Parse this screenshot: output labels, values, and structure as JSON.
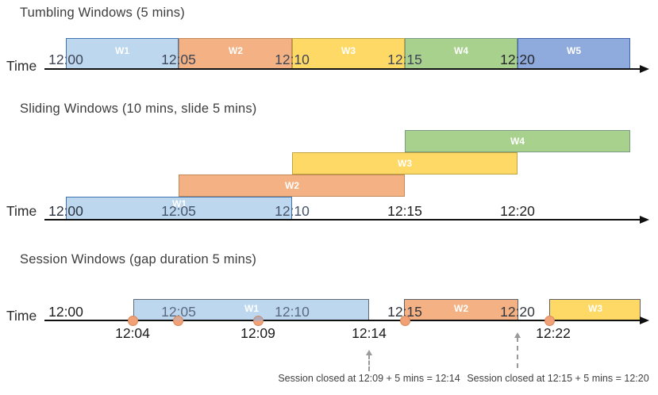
{
  "colors": {
    "window_blue_light": "#BDD7EE",
    "window_orange": "#F4B183",
    "window_yellow": "#FFD966",
    "window_green": "#A9D18E",
    "window_blue_mid": "#8FAADC",
    "event_dot": "#F2A177",
    "axis": "#101010"
  },
  "sections": [
    {
      "title": "Tumbling Windows (5 mins)",
      "axis_label": "Time",
      "ticks": [
        "12:00",
        "12:05",
        "12:10",
        "12:15",
        "12:20"
      ],
      "windows": [
        {
          "label": "W1",
          "start": "12:00",
          "end": "12:05",
          "color": "window_blue_light"
        },
        {
          "label": "W2",
          "start": "12:05",
          "end": "12:10",
          "color": "window_orange"
        },
        {
          "label": "W3",
          "start": "12:10",
          "end": "12:15",
          "color": "window_yellow"
        },
        {
          "label": "W4",
          "start": "12:15",
          "end": "12:20",
          "color": "window_green"
        },
        {
          "label": "W5",
          "start": "12:20",
          "end": "12:25",
          "color": "window_blue_mid"
        }
      ]
    },
    {
      "title": "Sliding Windows (10 mins, slide 5 mins)",
      "axis_label": "Time",
      "ticks": [
        "12:00",
        "12:05",
        "12:10",
        "12:15",
        "12:20"
      ],
      "windows": [
        {
          "label": "W1",
          "start": "12:00",
          "end": "12:10",
          "color": "window_blue_light"
        },
        {
          "label": "W2",
          "start": "12:05",
          "end": "12:15",
          "color": "window_orange"
        },
        {
          "label": "W3",
          "start": "12:10",
          "end": "12:20",
          "color": "window_yellow"
        },
        {
          "label": "W4",
          "start": "12:15",
          "end": "12:25",
          "color": "window_green"
        }
      ]
    },
    {
      "title": "Session Windows (gap duration 5 mins)",
      "axis_label": "Time",
      "ticks": [
        "12:00",
        "12:05",
        "12:10",
        "12:15",
        "12:20"
      ],
      "windows": [
        {
          "label": "W1",
          "start": "12:04",
          "end": "12:14",
          "color": "window_blue_light"
        },
        {
          "label": "W2",
          "start": "12:15",
          "end": "12:20",
          "color": "window_orange"
        },
        {
          "label": "W3",
          "start": "12:22",
          "end": "",
          "color": "window_yellow"
        }
      ],
      "events": [
        "12:04",
        "",
        "12:09",
        "12:15",
        "12:22"
      ],
      "event_labels": [
        "12:04",
        "12:09",
        "12:14",
        "12:22"
      ],
      "annotations": [
        "Session closed at 12:09 + 5 mins = 12:14",
        "Session closed at 12:15 + 5 mins = 12:20"
      ]
    }
  ]
}
